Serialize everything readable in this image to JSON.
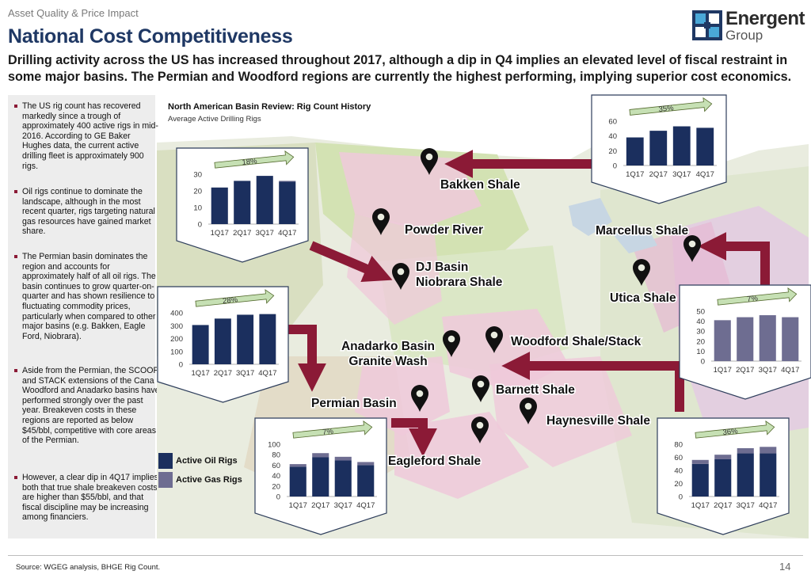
{
  "header": {
    "topline": "Asset Quality & Price Impact",
    "title": "National Cost Competitiveness",
    "subtitle": "Drilling activity across the US has increased throughout 2017, although a dip in Q4 implies an elevated level of fiscal restraint in some major basins. The Permian and Woodford regions are currently the highest performing, implying superior cost economics."
  },
  "logo": {
    "name": "Energent",
    "sub": "Group"
  },
  "bullets": [
    "The US rig count has recovered markedly since a trough of approximately 400 active rigs in mid-2016. According to GE Baker Hughes data, the current active drilling fleet is approximately 900 rigs.",
    "Oil rigs continue to dominate the landscape, although in the most recent quarter, rigs targeting natural gas resources have gained market share.",
    "The Permian basin dominates the region and accounts for approximately half of all oil rigs. The basin continues to grow quarter-on-quarter and has shown resilience to fluctuating commodity prices, particularly when compared to other major basins (e.g. Bakken, Eagle Ford, Niobrara).",
    "Aside from the Permian, the SCOOP and STACK extensions of the Cana Woodford and Anadarko basins have performed strongly over the past year. Breakeven costs in these regions are reported as below $45/bbl, competitive with core areas of the Permian.",
    "However, a clear dip in 4Q17 implies both that true shale breakeven costs are higher than $55/bbl, and that fiscal discipline may be increasing among financiers."
  ],
  "map": {
    "title": "North American Basin Review: Rig Count History",
    "subtitle": "Average Active Drilling Rigs",
    "basins": [
      {
        "label": "Bakken Shale"
      },
      {
        "label": "Powder River"
      },
      {
        "label": "DJ Basin\nNiobrara Shale"
      },
      {
        "label": "Marcellus Shale"
      },
      {
        "label": "Utica Shale"
      },
      {
        "label": "Anadarko Basin\nGranite Wash"
      },
      {
        "label": "Woodford Shale/Stack"
      },
      {
        "label": "Barnett Shale"
      },
      {
        "label": "Haynesville Shale"
      },
      {
        "label": "Permian Basin"
      },
      {
        "label": "Eagleford Shale"
      }
    ]
  },
  "legend": {
    "oil": "Active Oil Rigs",
    "gas": "Active Gas Rigs"
  },
  "colors": {
    "oil": "#1b2f5e",
    "gas": "#6e6d91",
    "accent": "#8b1a36",
    "title": "#1f3864",
    "growth_arrow": "#c6e0b4"
  },
  "chart_data": [
    {
      "type": "bar",
      "name": "Bakken inset",
      "categories": [
        "1Q17",
        "2Q17",
        "3Q17",
        "4Q17"
      ],
      "series": [
        {
          "name": "Active Oil Rigs",
          "values": [
            38,
            47,
            53,
            51
          ]
        },
        {
          "name": "Active Gas Rigs",
          "values": [
            0,
            0,
            0,
            0
          ]
        }
      ],
      "ylim": [
        0,
        60
      ],
      "yticks": [
        0,
        20,
        40,
        60
      ],
      "growth_label": "35%"
    },
    {
      "type": "bar",
      "name": "DJ Basin inset",
      "categories": [
        "1Q17",
        "2Q17",
        "3Q17",
        "4Q17"
      ],
      "series": [
        {
          "name": "Active Oil Rigs",
          "values": [
            22,
            26,
            29,
            25.5
          ]
        },
        {
          "name": "Active Gas Rigs",
          "values": [
            0,
            0,
            0,
            0.5
          ]
        }
      ],
      "ylim": [
        0,
        30
      ],
      "yticks": [
        0,
        10,
        20,
        30
      ],
      "growth_label": "18%"
    },
    {
      "type": "bar",
      "name": "Permian inset",
      "categories": [
        "1Q17",
        "2Q17",
        "3Q17",
        "4Q17"
      ],
      "series": [
        {
          "name": "Active Oil Rigs",
          "values": [
            305,
            355,
            385,
            390
          ]
        },
        {
          "name": "Active Gas Rigs",
          "values": [
            0,
            0,
            0,
            0
          ]
        }
      ],
      "ylim": [
        0,
        400
      ],
      "yticks": [
        0,
        100,
        200,
        300,
        400
      ],
      "growth_label": "28%"
    },
    {
      "type": "bar",
      "name": "Eagleford inset",
      "categories": [
        "1Q17",
        "2Q17",
        "3Q17",
        "4Q17"
      ],
      "series": [
        {
          "name": "Active Oil Rigs",
          "values": [
            57,
            75,
            69,
            60
          ]
        },
        {
          "name": "Active Gas Rigs",
          "values": [
            5,
            8,
            7,
            6
          ]
        }
      ],
      "ylim": [
        0,
        100
      ],
      "yticks": [
        0,
        20,
        40,
        60,
        80,
        100
      ],
      "growth_label": "7%"
    },
    {
      "type": "bar",
      "name": "Marcellus/Utica inset",
      "categories": [
        "1Q17",
        "2Q17",
        "3Q17",
        "4Q17"
      ],
      "series": [
        {
          "name": "Active Oil Rigs",
          "values": [
            0,
            0,
            0,
            0
          ]
        },
        {
          "name": "Active Gas Rigs",
          "values": [
            41,
            44,
            46,
            44
          ]
        }
      ],
      "ylim": [
        0,
        50
      ],
      "yticks": [
        0,
        10,
        20,
        30,
        40,
        50
      ],
      "growth_label": "7%"
    },
    {
      "type": "bar",
      "name": "Haynesville inset",
      "categories": [
        "1Q17",
        "2Q17",
        "3Q17",
        "4Q17"
      ],
      "series": [
        {
          "name": "Active Oil Rigs",
          "values": [
            50,
            57,
            66,
            66
          ]
        },
        {
          "name": "Active Gas Rigs",
          "values": [
            6,
            7,
            8,
            10
          ]
        }
      ],
      "ylim": [
        0,
        80
      ],
      "yticks": [
        0,
        20,
        40,
        60,
        80
      ],
      "growth_label": "36%"
    }
  ],
  "footer": {
    "source": "Source: WGEG analysis, BHGE Rig Count.",
    "page": "14"
  }
}
